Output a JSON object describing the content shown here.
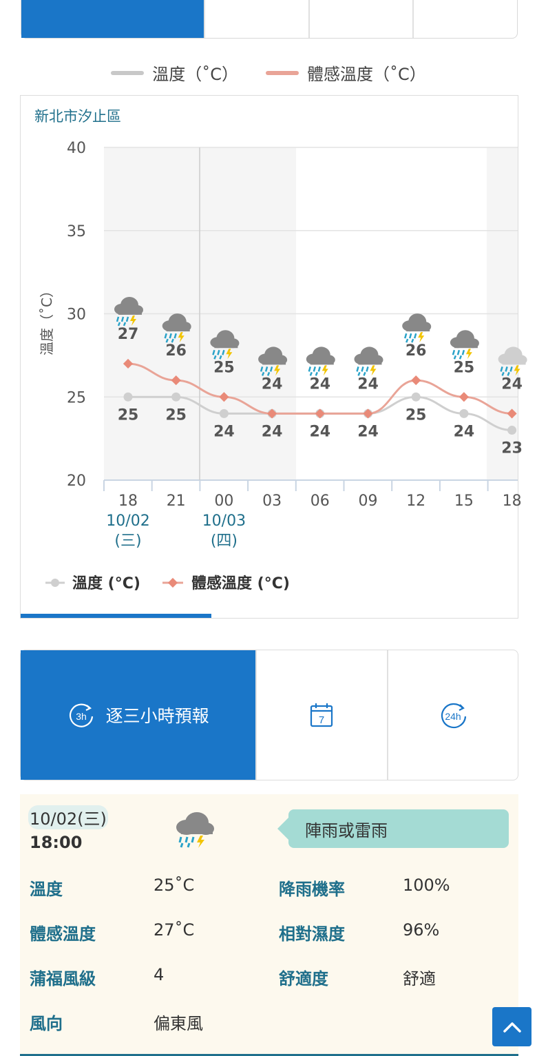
{
  "legend_top": {
    "temp": "溫度（˚C）",
    "feel": "體感溫度（˚C）"
  },
  "location": "新北市汐止區",
  "colors": {
    "accent": "#1a76c8",
    "temp_line": "#c8c8c8",
    "feel_line": "#e9a497",
    "teal": "#1f6f8b",
    "desc_bg": "#a4dbd4"
  },
  "chart_data": {
    "type": "line",
    "ylabel": "溫度（˚C）",
    "ylim": [
      20,
      40
    ],
    "y_ticks": [
      20,
      25,
      30,
      35,
      40
    ],
    "x_ticks": [
      "18",
      "21",
      "00",
      "03",
      "06",
      "09",
      "12",
      "15",
      "18"
    ],
    "date_labels": [
      {
        "at": "18",
        "date": "10/02",
        "weekday": "(三)"
      },
      {
        "at": "00",
        "date": "10/03",
        "weekday": "(四)"
      }
    ],
    "series": [
      {
        "name": "溫度 (°C)",
        "values": [
          25,
          25,
          24,
          24,
          24,
          24,
          25,
          24,
          23
        ]
      },
      {
        "name": "體感溫度 (°C)",
        "values": [
          27,
          26,
          25,
          24,
          24,
          24,
          26,
          25,
          24
        ]
      }
    ],
    "weather_icons": [
      "rain-thunder-icon",
      "rain-thunder-icon",
      "rain-thunder-icon",
      "rain-thunder-icon",
      "rain-thunder-icon",
      "rain-thunder-icon",
      "rain-thunder-icon",
      "rain-thunder-icon",
      "rain-thunder-light-icon"
    ],
    "legend": [
      "溫度 (°C)",
      "體感溫度 (°C)"
    ]
  },
  "tabs": [
    {
      "label": "逐三小時預報",
      "icon": "3h-icon",
      "icon_text": "3h"
    },
    {
      "label": "",
      "icon": "calendar-7-icon",
      "icon_text": "7"
    },
    {
      "label": "",
      "icon": "24h-icon",
      "icon_text": "24h"
    }
  ],
  "detail": {
    "date": "10/02(三)",
    "time": "18:00",
    "description": "陣雨或雷雨",
    "temp_label": "溫度",
    "temp_value": "25˚C",
    "feel_label": "體感溫度",
    "feel_value": "27˚C",
    "beaufort_label": "蒲福風級",
    "beaufort_value": "4",
    "wind_dir_label": "風向",
    "wind_dir_value": "偏東風",
    "rain_prob_label": "降雨機率",
    "rain_prob_value": "100%",
    "humidity_label": "相對濕度",
    "humidity_value": "96%",
    "comfort_label": "舒適度",
    "comfort_value": "舒適"
  }
}
